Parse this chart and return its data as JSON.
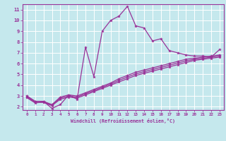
{
  "background_color": "#c5e8ed",
  "grid_color": "#ffffff",
  "line_color": "#993399",
  "marker_style": "*",
  "xlabel": "Windchill (Refroidissement éolien,°C)",
  "xlim": [
    -0.5,
    23.5
  ],
  "ylim": [
    1.7,
    11.5
  ],
  "yticks": [
    2,
    3,
    4,
    5,
    6,
    7,
    8,
    9,
    10,
    11
  ],
  "xticks": [
    0,
    1,
    2,
    3,
    4,
    5,
    6,
    7,
    8,
    9,
    10,
    11,
    12,
    13,
    14,
    15,
    16,
    17,
    18,
    19,
    20,
    21,
    22,
    23
  ],
  "line1_x": [
    0,
    1,
    2,
    3,
    4,
    5,
    6,
    7,
    8,
    9,
    10,
    11,
    12,
    13,
    14,
    15,
    16,
    17,
    18,
    19,
    20,
    21,
    22,
    23
  ],
  "line1_y": [
    3.0,
    2.5,
    2.5,
    1.85,
    2.2,
    3.1,
    2.7,
    7.5,
    4.8,
    9.0,
    10.0,
    10.4,
    11.3,
    9.5,
    9.3,
    8.1,
    8.3,
    7.2,
    7.0,
    6.8,
    6.7,
    6.7,
    6.6,
    7.3
  ],
  "line2_x": [
    0,
    1,
    2,
    3,
    4,
    5,
    6,
    7,
    8,
    9,
    10,
    11,
    12,
    13,
    14,
    15,
    16,
    17,
    18,
    19,
    20,
    21,
    22,
    23
  ],
  "line2_y": [
    3.0,
    2.5,
    2.5,
    2.2,
    2.9,
    3.1,
    3.0,
    3.3,
    3.6,
    3.9,
    4.2,
    4.6,
    4.9,
    5.2,
    5.4,
    5.6,
    5.8,
    6.0,
    6.2,
    6.4,
    6.5,
    6.6,
    6.7,
    6.8
  ],
  "line3_x": [
    0,
    1,
    2,
    3,
    4,
    5,
    6,
    7,
    8,
    9,
    10,
    11,
    12,
    13,
    14,
    15,
    16,
    17,
    18,
    19,
    20,
    21,
    22,
    23
  ],
  "line3_y": [
    2.9,
    2.4,
    2.4,
    2.1,
    2.7,
    2.9,
    2.8,
    3.1,
    3.4,
    3.7,
    4.0,
    4.3,
    4.6,
    4.9,
    5.1,
    5.3,
    5.5,
    5.7,
    5.9,
    6.1,
    6.3,
    6.4,
    6.5,
    6.6
  ],
  "line4_x": [
    0,
    1,
    2,
    3,
    4,
    5,
    6,
    7,
    8,
    9,
    10,
    11,
    12,
    13,
    14,
    15,
    16,
    17,
    18,
    19,
    20,
    21,
    22,
    23
  ],
  "line4_y": [
    2.85,
    2.35,
    2.45,
    2.15,
    2.8,
    3.0,
    2.9,
    3.2,
    3.5,
    3.8,
    4.1,
    4.45,
    4.75,
    5.05,
    5.25,
    5.45,
    5.65,
    5.85,
    6.05,
    6.25,
    6.4,
    6.5,
    6.6,
    6.7
  ]
}
